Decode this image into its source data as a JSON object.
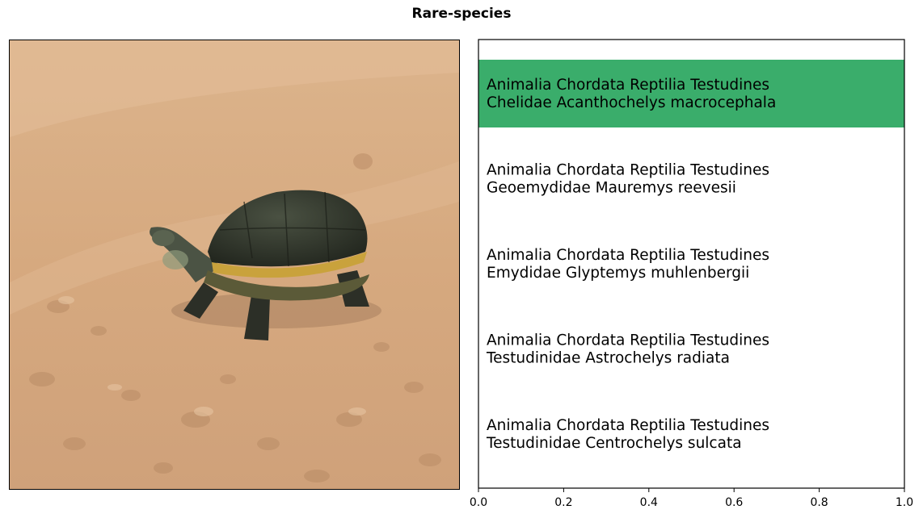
{
  "title": "Rare-species",
  "photo": {
    "subject": "turtle-on-sand",
    "colors": {
      "sand": "#d8ac82",
      "shell": "#33382e",
      "rim": "#c9a23c"
    }
  },
  "chart_data": {
    "type": "bar",
    "orientation": "horizontal",
    "xlim": [
      0,
      1.0
    ],
    "xticks": [
      "0.0",
      "0.2",
      "0.4",
      "0.6",
      "0.8",
      "1.0"
    ],
    "bar_color": "#3aad6b",
    "categories": [
      [
        "Animalia Chordata Reptilia Testudines",
        "Chelidae Acanthochelys macrocephala"
      ],
      [
        "Animalia Chordata Reptilia Testudines",
        "Geoemydidae Mauremys reevesii"
      ],
      [
        "Animalia Chordata Reptilia Testudines",
        "Emydidae Glyptemys muhlenbergii"
      ],
      [
        "Animalia Chordata Reptilia Testudines",
        "Testudinidae Astrochelys radiata"
      ],
      [
        "Animalia Chordata Reptilia Testudines",
        "Testudinidae Centrochelys sulcata"
      ]
    ],
    "values": [
      1.0,
      0.0,
      0.0,
      0.0,
      0.0
    ]
  }
}
